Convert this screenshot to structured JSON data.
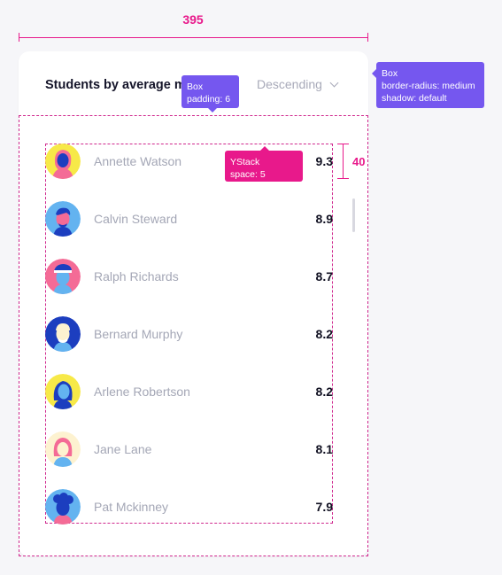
{
  "width_annotation": "395",
  "row_height_annotation": "40",
  "card": {
    "title": "Students by average mark",
    "sort_label": "Descending"
  },
  "tooltips": {
    "box_padding": {
      "line1": "Box",
      "line2": "padding: 6"
    },
    "box_radius": {
      "line1": "Box",
      "line2": "border-radius: medium",
      "line3": "shadow: default"
    },
    "ystack": {
      "line1": "YStack",
      "line2": "space: 5"
    }
  },
  "students": [
    {
      "name": "Annette Watson",
      "score": "9.3",
      "avatar_bg": "#f7e948"
    },
    {
      "name": "Calvin Steward",
      "score": "8.9",
      "avatar_bg": "#63b3f0"
    },
    {
      "name": "Ralph Richards",
      "score": "8.7",
      "avatar_bg": "#f46b96"
    },
    {
      "name": "Bernard Murphy",
      "score": "8.2",
      "avatar_bg": "#1c3ebf"
    },
    {
      "name": "Arlene Robertson",
      "score": "8.2",
      "avatar_bg": "#f7e948"
    },
    {
      "name": "Jane Lane",
      "score": "8.1",
      "avatar_bg": "#fdf2d0"
    },
    {
      "name": "Pat Mckinney",
      "score": "7.9",
      "avatar_bg": "#63b3f0"
    }
  ],
  "colors": {
    "annotation_pink": "#e8198b",
    "annotation_purple": "#7557ef",
    "text_muted": "#a4a7b6",
    "text_dark": "#111122"
  },
  "icons": {
    "sort_chevron": "chevron-down-icon"
  }
}
